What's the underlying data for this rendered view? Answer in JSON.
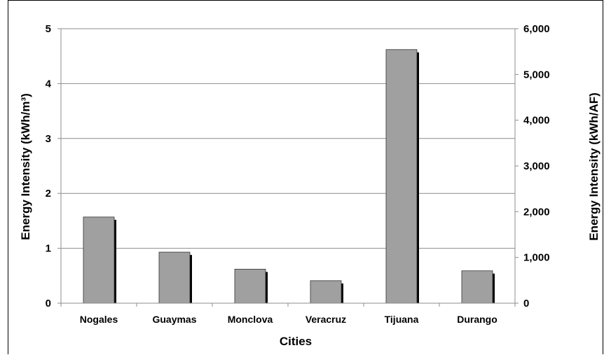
{
  "chart_data": {
    "type": "bar",
    "categories": [
      "Nogales",
      "Guaymas",
      "Monclova",
      "Veracruz",
      "Tijuana",
      "Durango"
    ],
    "series": [
      {
        "values": [
          1.57,
          0.93,
          0.62,
          0.41,
          4.62,
          0.59
        ]
      }
    ],
    "xlabel": "Cities",
    "ylabel": "Energy Intensity (kWh/m³)",
    "ylabel_right": "Energy Intensity (kWh/AF)",
    "ylim": [
      0,
      5
    ],
    "ylim_right": [
      0,
      6000
    ],
    "yticks": [
      "0",
      "1",
      "2",
      "3",
      "4",
      "5"
    ],
    "yticks_right": [
      "0",
      "1,000",
      "2,000",
      "3,000",
      "4,000",
      "5,000",
      "6,000"
    ],
    "grid": true,
    "colors": {
      "bar": "#a0a0a0",
      "shadow": "#000000",
      "grid": "#8c8c8c"
    }
  }
}
